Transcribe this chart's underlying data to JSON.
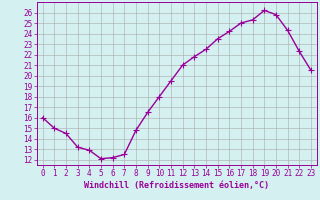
{
  "x": [
    0,
    1,
    2,
    3,
    4,
    5,
    6,
    7,
    8,
    9,
    10,
    11,
    12,
    13,
    14,
    15,
    16,
    17,
    18,
    19,
    20,
    21,
    22,
    23
  ],
  "y": [
    16.0,
    15.0,
    14.5,
    13.2,
    12.9,
    12.1,
    12.2,
    12.5,
    14.8,
    16.5,
    18.0,
    19.5,
    21.0,
    21.8,
    22.5,
    23.5,
    24.2,
    25.0,
    25.3,
    26.2,
    25.8,
    24.3,
    22.3,
    20.5
  ],
  "line_color": "#990099",
  "marker": "+",
  "markersize": 4,
  "linewidth": 1.0,
  "bg_color": "#d4f0f0",
  "grid_color": "#aaaaaa",
  "xlabel": "Windchill (Refroidissement éolien,°C)",
  "xlim": [
    -0.5,
    23.5
  ],
  "ylim": [
    11.5,
    27.0
  ],
  "xticks": [
    0,
    1,
    2,
    3,
    4,
    5,
    6,
    7,
    8,
    9,
    10,
    11,
    12,
    13,
    14,
    15,
    16,
    17,
    18,
    19,
    20,
    21,
    22,
    23
  ],
  "yticks": [
    12,
    13,
    14,
    15,
    16,
    17,
    18,
    19,
    20,
    21,
    22,
    23,
    24,
    25,
    26
  ],
  "tick_color": "#990099",
  "label_color": "#990099",
  "tick_fontsize": 5.5,
  "xlabel_fontsize": 6.0
}
